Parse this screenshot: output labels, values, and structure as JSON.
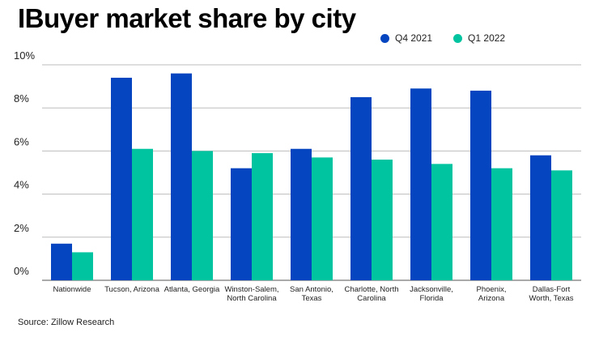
{
  "chart_data": {
    "type": "bar",
    "title": "IBuyer market share by city",
    "xlabel": "",
    "ylabel": "",
    "ylim": [
      0,
      10
    ],
    "yticks": [
      "0%",
      "2%",
      "4%",
      "6%",
      "8%",
      "10%"
    ],
    "grid": true,
    "legend_position": "top-right",
    "categories": [
      [
        "Nationwide"
      ],
      [
        "Tucson, Arizona"
      ],
      [
        "Atlanta, Georgia"
      ],
      [
        "Winston-Salem,",
        "North Carolina"
      ],
      [
        "San Antonio,",
        "Texas"
      ],
      [
        "Charlotte, North",
        "Carolina"
      ],
      [
        "Jacksonville,",
        "Florida"
      ],
      [
        "Phoenix,",
        "Arizona"
      ],
      [
        "Dallas-Fort",
        "Worth, Texas"
      ]
    ],
    "series": [
      {
        "name": "Q4 2021",
        "color": "#0645c0",
        "values": [
          1.7,
          9.4,
          9.6,
          5.2,
          6.1,
          8.5,
          8.9,
          8.8,
          5.8
        ]
      },
      {
        "name": "Q1 2022",
        "color": "#00c4a0",
        "values": [
          1.3,
          6.1,
          6.0,
          5.9,
          5.7,
          5.6,
          5.4,
          5.2,
          5.1
        ]
      }
    ]
  },
  "source": "Source: Zillow Research"
}
